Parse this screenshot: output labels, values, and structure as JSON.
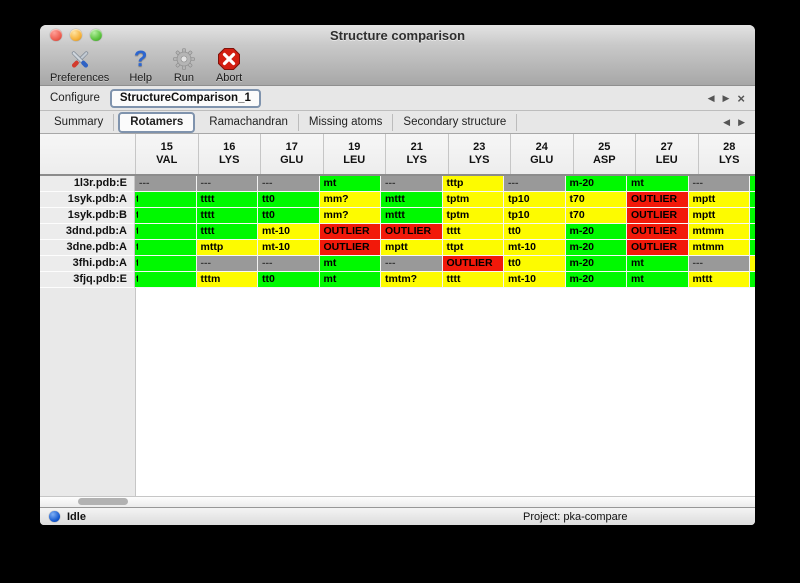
{
  "window": {
    "title": "Structure comparison"
  },
  "toolbar": {
    "items": [
      {
        "id": "preferences",
        "label": "Preferences",
        "icon": "tools-icon"
      },
      {
        "id": "help",
        "label": "Help",
        "icon": "question-mark-icon"
      },
      {
        "id": "run",
        "label": "Run",
        "icon": "gear-icon"
      },
      {
        "id": "abort",
        "label": "Abort",
        "icon": "stop-x-icon"
      }
    ]
  },
  "configure": {
    "label": "Configure",
    "active": "StructureComparison_1",
    "nav": [
      {
        "name": "nav-left-icon",
        "glyph": "◀"
      },
      {
        "name": "nav-right-icon",
        "glyph": "▶"
      },
      {
        "name": "close-icon",
        "glyph": "×"
      }
    ]
  },
  "tabs": {
    "items": [
      "Summary",
      "Rotamers",
      "Ramachandran",
      "Missing atoms",
      "Secondary structure"
    ],
    "active_index": 1,
    "nav": [
      {
        "name": "nav-left-icon",
        "glyph": "◀"
      },
      {
        "name": "nav-right-icon",
        "glyph": "▶"
      }
    ]
  },
  "table": {
    "colors": {
      "green": "#00f900",
      "yellow": "#fdfb00",
      "red": "#f2190a",
      "gray": "#999999"
    },
    "columns": [
      {
        "num": "15",
        "res": "VAL"
      },
      {
        "num": "16",
        "res": "LYS"
      },
      {
        "num": "17",
        "res": "GLU"
      },
      {
        "num": "19",
        "res": "LEU"
      },
      {
        "num": "21",
        "res": "LYS"
      },
      {
        "num": "23",
        "res": "LYS"
      },
      {
        "num": "24",
        "res": "GLU"
      },
      {
        "num": "25",
        "res": "ASP"
      },
      {
        "num": "27",
        "res": "LEU"
      },
      {
        "num": "28",
        "res": "LYS"
      }
    ],
    "rows": [
      {
        "label": "1l3r.pdb:E",
        "edge": "green",
        "cells": [
          {
            "t": "---",
            "c": "gray"
          },
          {
            "t": "---",
            "c": "gray"
          },
          {
            "t": "---",
            "c": "gray"
          },
          {
            "t": "mt",
            "c": "green"
          },
          {
            "t": "---",
            "c": "gray"
          },
          {
            "t": "tttp",
            "c": "yellow"
          },
          {
            "t": "---",
            "c": "gray"
          },
          {
            "t": "m-20",
            "c": "green"
          },
          {
            "t": "mt",
            "c": "green"
          },
          {
            "t": "---",
            "c": "gray"
          }
        ]
      },
      {
        "label": "1syk.pdb:A",
        "edge": "green",
        "cells": [
          {
            "t": "t",
            "c": "green",
            "clip": true
          },
          {
            "t": "tttt",
            "c": "green"
          },
          {
            "t": "tt0",
            "c": "green"
          },
          {
            "t": "mm?",
            "c": "yellow"
          },
          {
            "t": "mttt",
            "c": "green"
          },
          {
            "t": "tptm",
            "c": "yellow"
          },
          {
            "t": "tp10",
            "c": "yellow"
          },
          {
            "t": "t70",
            "c": "yellow"
          },
          {
            "t": "OUTLIER",
            "c": "red"
          },
          {
            "t": "mptt",
            "c": "yellow"
          }
        ]
      },
      {
        "label": "1syk.pdb:B",
        "edge": "green",
        "cells": [
          {
            "t": "t",
            "c": "green",
            "clip": true
          },
          {
            "t": "tttt",
            "c": "green"
          },
          {
            "t": "tt0",
            "c": "green"
          },
          {
            "t": "mm?",
            "c": "yellow"
          },
          {
            "t": "mttt",
            "c": "green"
          },
          {
            "t": "tptm",
            "c": "yellow"
          },
          {
            "t": "tp10",
            "c": "yellow"
          },
          {
            "t": "t70",
            "c": "yellow"
          },
          {
            "t": "OUTLIER",
            "c": "red"
          },
          {
            "t": "mptt",
            "c": "yellow"
          }
        ]
      },
      {
        "label": "3dnd.pdb:A",
        "edge": "green",
        "cells": [
          {
            "t": "t",
            "c": "green",
            "clip": true
          },
          {
            "t": "tttt",
            "c": "green"
          },
          {
            "t": "mt-10",
            "c": "yellow"
          },
          {
            "t": "OUTLIER",
            "c": "red"
          },
          {
            "t": "OUTLIER",
            "c": "red"
          },
          {
            "t": "tttt",
            "c": "yellow"
          },
          {
            "t": "tt0",
            "c": "yellow"
          },
          {
            "t": "m-20",
            "c": "green"
          },
          {
            "t": "OUTLIER",
            "c": "red"
          },
          {
            "t": "mtmm",
            "c": "yellow"
          }
        ]
      },
      {
        "label": "3dne.pdb:A",
        "edge": "green",
        "cells": [
          {
            "t": "t",
            "c": "green",
            "clip": true
          },
          {
            "t": "mttp",
            "c": "yellow"
          },
          {
            "t": "mt-10",
            "c": "yellow"
          },
          {
            "t": "OUTLIER",
            "c": "red"
          },
          {
            "t": "mptt",
            "c": "yellow"
          },
          {
            "t": "ttpt",
            "c": "yellow"
          },
          {
            "t": "mt-10",
            "c": "yellow"
          },
          {
            "t": "m-20",
            "c": "green"
          },
          {
            "t": "OUTLIER",
            "c": "red"
          },
          {
            "t": "mtmm",
            "c": "yellow"
          }
        ]
      },
      {
        "label": "3fhi.pdb:A",
        "edge": "yellow",
        "cells": [
          {
            "t": "t",
            "c": "green",
            "clip": true
          },
          {
            "t": "---",
            "c": "gray"
          },
          {
            "t": "---",
            "c": "gray"
          },
          {
            "t": "mt",
            "c": "green"
          },
          {
            "t": "---",
            "c": "gray"
          },
          {
            "t": "OUTLIER",
            "c": "red"
          },
          {
            "t": "tt0",
            "c": "yellow"
          },
          {
            "t": "m-20",
            "c": "green"
          },
          {
            "t": "mt",
            "c": "green"
          },
          {
            "t": "---",
            "c": "gray"
          }
        ]
      },
      {
        "label": "3fjq.pdb:E",
        "edge": "green",
        "cells": [
          {
            "t": "t",
            "c": "green",
            "clip": true
          },
          {
            "t": "tttm",
            "c": "yellow"
          },
          {
            "t": "tt0",
            "c": "green"
          },
          {
            "t": "mt",
            "c": "green"
          },
          {
            "t": "tmtm?",
            "c": "yellow"
          },
          {
            "t": "tttt",
            "c": "yellow"
          },
          {
            "t": "mt-10",
            "c": "yellow"
          },
          {
            "t": "m-20",
            "c": "green"
          },
          {
            "t": "mt",
            "c": "green"
          },
          {
            "t": "mttt",
            "c": "yellow"
          }
        ]
      }
    ]
  },
  "statusbar": {
    "status": "Idle",
    "project": "Project: pka-compare"
  }
}
